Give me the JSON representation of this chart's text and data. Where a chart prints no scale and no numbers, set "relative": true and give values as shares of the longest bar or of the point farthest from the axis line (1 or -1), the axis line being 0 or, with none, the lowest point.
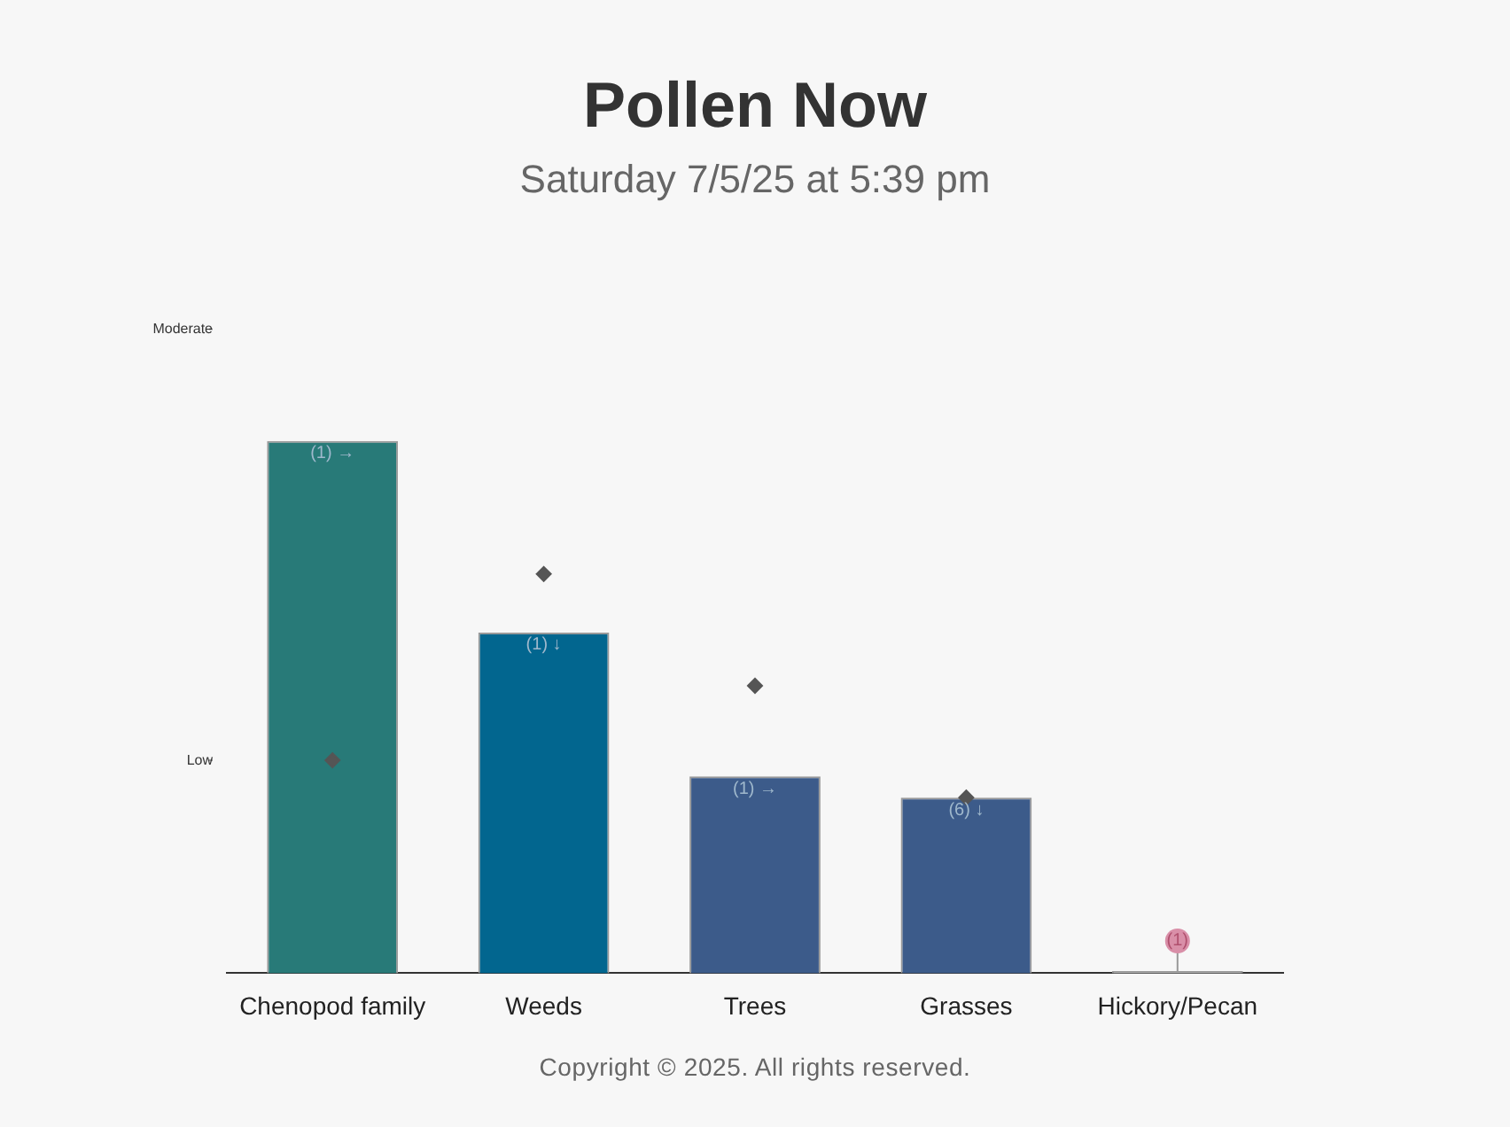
{
  "chart_data": {
    "type": "bar",
    "title": "Pollen Now",
    "subtitle": "Saturday 7/5/25 at 5:39 pm",
    "relative": true,
    "categories": [
      "Chenopod family",
      "Weeds",
      "Trees",
      "Grasses",
      "Hickory/Pecan"
    ],
    "series": [
      {
        "colors": [
          "#287a78",
          "#02668f",
          "#3c5b8a",
          "#3c5b8a",
          "#cccccc"
        ],
        "values": [
          1,
          0.64,
          0.37,
          0.33,
          0.004
        ]
      },
      {
        "type": "scatter",
        "color": "#555555",
        "values": [
          0.4,
          0.75,
          0.54,
          0.33,
          null
        ]
      }
    ],
    "legend": false,
    "marker": "diamond",
    "ref_lines": [
      {
        "axis": "y",
        "value": 0.4,
        "label": "Low"
      },
      {
        "axis": "y",
        "value": 1.21,
        "label": "Moderate"
      }
    ],
    "annotations": [
      {
        "text": "(1) →",
        "x": "Chenopod family",
        "y": 1
      },
      {
        "text": "(1) ↓",
        "x": "Weeds",
        "y": 0.64
      },
      {
        "text": "(1) →",
        "x": "Trees",
        "y": 0.37
      },
      {
        "text": "(6) ↓",
        "x": "Grasses",
        "y": 0.33
      },
      {
        "text": "(1)",
        "x": "Hickory/Pecan",
        "y": 0.004
      },
      "Copyright © 2025. All rights reserved."
    ]
  }
}
